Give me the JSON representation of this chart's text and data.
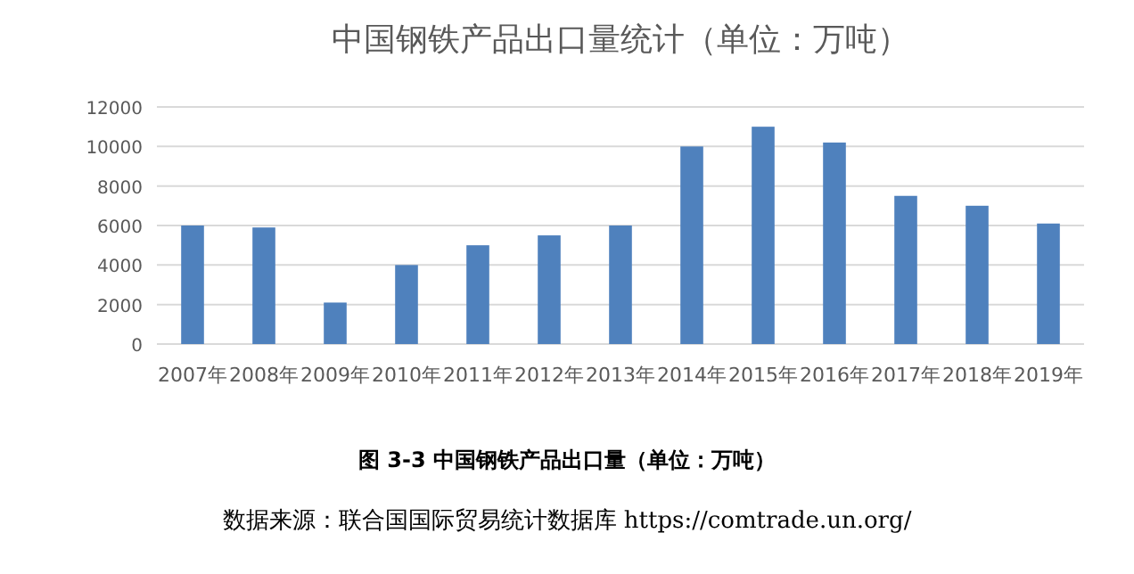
{
  "chart_data": {
    "type": "bar",
    "title": "中国钢铁产品出口量统计（单位：万吨）",
    "categories": [
      "2007年",
      "2008年",
      "2009年",
      "2010年",
      "2011年",
      "2012年",
      "2013年",
      "2014年",
      "2015年",
      "2016年",
      "2017年",
      "2018年",
      "2019年"
    ],
    "values": [
      6000,
      5900,
      2100,
      4000,
      5000,
      5500,
      6000,
      10000,
      11000,
      10200,
      7500,
      7000,
      6100
    ],
    "color": "#4f81bd",
    "ylim": [
      0,
      12000
    ],
    "yticks": [
      0,
      2000,
      4000,
      6000,
      8000,
      10000,
      12000
    ],
    "grid": "y",
    "annotations": [
      "图 3-3 中国钢铁产品出口量（单位：万吨）",
      "数据来源：联合国国际贸易统计数据库 https://comtrade.un.org/"
    ]
  }
}
